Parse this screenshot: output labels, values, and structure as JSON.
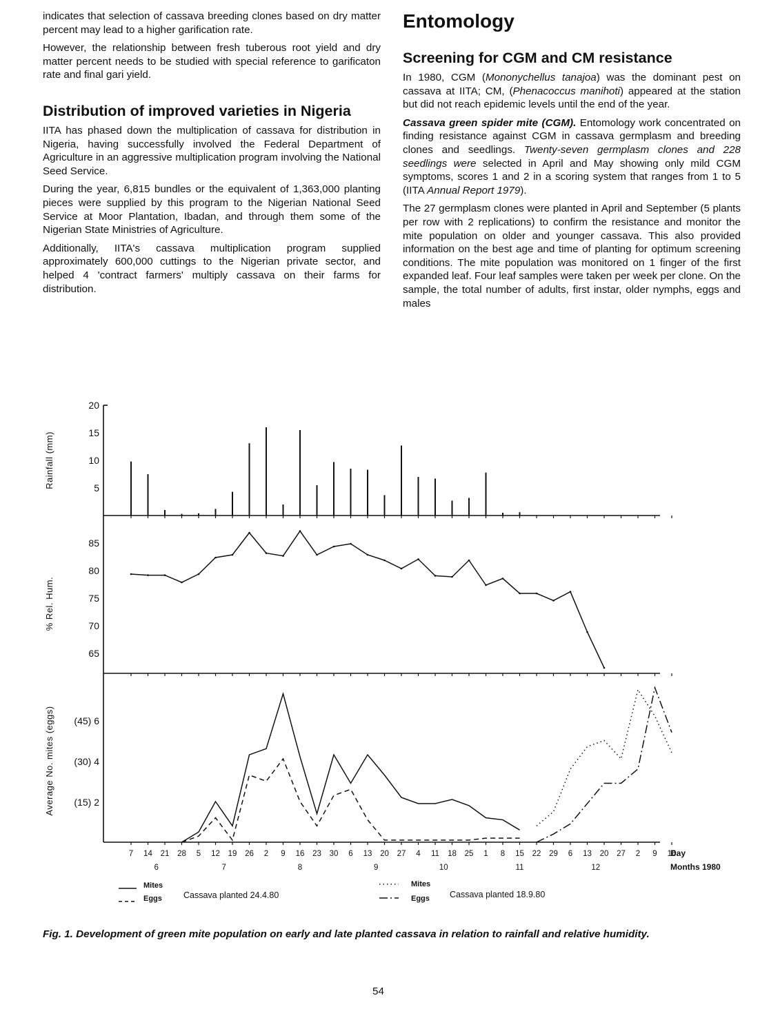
{
  "left_column": {
    "paragraph_1": "indicates that selection of cassava breeding clones based on dry matter percent may lead to a higher garification rate.",
    "paragraph_2": "However, the relationship between fresh tuberous root yield and dry matter percent needs to be studied with special reference to garificaton rate and final gari yield.",
    "heading_distribution": "Distribution of improved varieties in Nigeria",
    "paragraph_3": "IITA has phased down the multiplication of cassava for distribution in Nigeria, having successfully involved the Federal Department of Agriculture in an aggressive multiplication program involving the National Seed Service.",
    "paragraph_4": "During the year, 6,815 bundles or the equivalent of 1,363,000 planting pieces were supplied by this program to the Nigerian National Seed Service at Moor Plantation, Ibadan, and through them some of the Nigerian State Ministries of Agriculture.",
    "paragraph_5": "Additionally, IITA's cassava multiplication program supplied approximately 600,000 cuttings to the Nigerian private sector, and helped 4 'contract farmers' multiply cassava on their farms for distribution."
  },
  "right_column": {
    "section_title": "Entomology",
    "subheading": "Screening for CGM and CM resistance",
    "p1_a": "In 1980, CGM (",
    "p1_b": "Mononychellus tanajoa",
    "p1_c": ") was the dominant pest on cassava at IITA; CM, (",
    "p1_d": "Phenacoccus manihoti",
    "p1_e": ") appeared at the station but did not reach epidemic levels until the end of the year.",
    "p2_runin": "Cassava green spider mite (CGM).",
    "p2_a": " Entomology work concentrated on finding resistance against CGM in cassava germplasm and breeding clones and seedlings. ",
    "p2_b": "Twenty-seven germplasm clones and 228 seedlings were",
    "p2_c": " selected in April and May showing only mild CGM symptoms, scores 1 and 2 in a scoring system that ranges from 1 to 5 (IITA ",
    "p2_d": "Annual Report 1979",
    "p2_e": ").",
    "p3": "The 27 germplasm clones were planted in April and September (5 plants per row with 2 replications) to confirm the resistance and monitor the mite population on older and younger cassava. This also provided information on the best age and time of planting for optimum screening conditions. The mite population was monitored on 1 finger of the first expanded leaf. Four leaf samples were taken per week per clone. On the sample, the total number of adults, first instar, older nymphs, eggs and males"
  },
  "figure": {
    "caption": "Fig. 1. Development of green mite population on early and late planted cassava in relation to rainfall and relative humidity.",
    "legend": {
      "early_mites": "Mites",
      "early_eggs": "Eggs",
      "early_planting": "Cassava planted 24.4.80",
      "late_mites": "Mites",
      "late_eggs": "Eggs",
      "late_planting": "Cassava planted 18.9.80"
    }
  },
  "page_number": "54",
  "chart_data": [
    {
      "type": "bar",
      "ylabel": "Rainfall (mm)",
      "ylim": [
        0,
        20
      ],
      "yticks": [
        "20",
        "15",
        "10",
        "5"
      ],
      "x_dates": [
        "Jun 7",
        "Jun 14",
        "Jun 21",
        "Jun 28",
        "Jul 5",
        "Jul 12",
        "Jul 19",
        "Jul 26",
        "Aug 2",
        "Aug 9",
        "Aug 16",
        "Aug 23",
        "Aug 30",
        "Sep 6",
        "Sep 13",
        "Sep 20",
        "Sep 27",
        "Oct 4",
        "Oct 11",
        "Oct 18",
        "Oct 25",
        "Nov 1",
        "Nov 8",
        "Nov 15",
        "Nov 22",
        "Nov 29",
        "Dec 6",
        "Dec 13",
        "Dec 20",
        "Dec 27",
        "Jan 2",
        "Jan 9",
        "Jan 16"
      ],
      "values": [
        9.8,
        7.5,
        1,
        0.3,
        0.4,
        1.2,
        4.3,
        13.1,
        16,
        2,
        15.5,
        5.5,
        9.7,
        8.5,
        8.3,
        3.7,
        12.7,
        7,
        6.7,
        2.7,
        3.2,
        7.8,
        0.5,
        0.6,
        0,
        0,
        0,
        0,
        0,
        0,
        0,
        0,
        0
      ]
    },
    {
      "type": "line",
      "ylabel": "% Rel. Hum.",
      "ylim": [
        62,
        90
      ],
      "yticks": [
        "85",
        "80",
        "75",
        "70",
        "65"
      ],
      "x_dates": [
        "Jun 7",
        "Jun 14",
        "Jun 21",
        "Jun 28",
        "Jul 5",
        "Jul 12",
        "Jul 19",
        "Jul 26",
        "Aug 2",
        "Aug 9",
        "Aug 16",
        "Aug 23",
        "Aug 30",
        "Sep 6",
        "Sep 13",
        "Sep 20",
        "Sep 27",
        "Oct 4",
        "Oct 11",
        "Oct 18",
        "Oct 25",
        "Nov 1",
        "Nov 8",
        "Nov 15",
        "Nov 22",
        "Nov 29",
        "Dec 6",
        "Dec 13",
        "Dec 20"
      ],
      "values": [
        80,
        79.8,
        79.8,
        78.5,
        80,
        83,
        83.5,
        87.5,
        83.8,
        83.3,
        87.8,
        83.5,
        85,
        85.5,
        83.5,
        82.5,
        81,
        82.7,
        79.7,
        79.5,
        82.5,
        78,
        79.2,
        76.5,
        76.5,
        75.2,
        76.8,
        69.5,
        63
      ]
    },
    {
      "type": "line",
      "ylabel": "Average No. mites (eggs)",
      "yticks": [
        "(45) 6",
        "(30) 4",
        "(15) 2"
      ],
      "xlabel": "Day",
      "months_label": "Months 1980",
      "x_ticks": [
        "7",
        "14",
        "21",
        "28",
        "5",
        "12",
        "19",
        "26",
        "2",
        "9",
        "16",
        "23",
        "30",
        "6",
        "13",
        "20",
        "27",
        "4",
        "11",
        "18",
        "25",
        "1",
        "8",
        "15",
        "22",
        "29",
        "6",
        "13",
        "20",
        "27",
        "2",
        "9",
        "16"
      ],
      "month_ticks": [
        "6",
        "7",
        "8",
        "9",
        "10",
        "11",
        "12"
      ],
      "series": [
        {
          "name": "Mites",
          "planted": "24.4.80",
          "style": "solid",
          "x_dates": [
            "Jun 28",
            "Jul 5",
            "Jul 12",
            "Jul 19",
            "Jul 26",
            "Aug 2",
            "Aug 9",
            "Aug 16",
            "Aug 23",
            "Aug 30",
            "Sep 6",
            "Sep 13",
            "Sep 20",
            "Sep 27",
            "Oct 4",
            "Oct 11",
            "Oct 18",
            "Oct 25",
            "Nov 1",
            "Nov 8",
            "Nov 15"
          ],
          "values": [
            0,
            0.5,
            2,
            0.8,
            4.3,
            4.6,
            7.3,
            4.2,
            1.4,
            4.3,
            2.9,
            4.3,
            3.3,
            2.2,
            1.9,
            1.9,
            2.1,
            1.8,
            1.2,
            1.1,
            0.6
          ]
        },
        {
          "name": "Eggs",
          "planted": "24.4.80",
          "style": "dashed",
          "x_dates": [
            "Jun 28",
            "Jul 5",
            "Jul 12",
            "Jul 19",
            "Jul 26",
            "Aug 2",
            "Aug 9",
            "Aug 16",
            "Aug 23",
            "Aug 30",
            "Sep 6",
            "Sep 13",
            "Sep 20",
            "Sep 27",
            "Oct 4",
            "Oct 11",
            "Oct 18",
            "Oct 25",
            "Nov 1",
            "Nov 8",
            "Nov 15"
          ],
          "values": [
            0,
            0.3,
            1.2,
            0.1,
            3.3,
            3.0,
            4.1,
            2.0,
            0.8,
            2.3,
            2.6,
            1.1,
            0.1,
            0.1,
            0.1,
            0.1,
            0.1,
            0.1,
            0.2,
            0.2,
            0.2
          ]
        },
        {
          "name": "Mites",
          "planted": "18.9.80",
          "style": "dotted",
          "x_dates": [
            "Nov 22",
            "Nov 29",
            "Dec 6",
            "Dec 13",
            "Dec 20",
            "Dec 27",
            "Jan 2",
            "Jan 9",
            "Jan 16"
          ],
          "values": [
            0.8,
            1.5,
            3.6,
            4.7,
            5.0,
            4.1,
            7.5,
            6.2,
            4.4
          ]
        },
        {
          "name": "Eggs",
          "planted": "18.9.80",
          "style": "dash-dot",
          "x_dates": [
            "Nov 22",
            "Nov 29",
            "Dec 6",
            "Dec 13",
            "Dec 20",
            "Dec 27",
            "Jan 2",
            "Jan 9",
            "Jan 16"
          ],
          "values": [
            0,
            0.4,
            0.9,
            1.9,
            2.9,
            2.9,
            3.6,
            7.6,
            5.4
          ]
        }
      ]
    }
  ]
}
